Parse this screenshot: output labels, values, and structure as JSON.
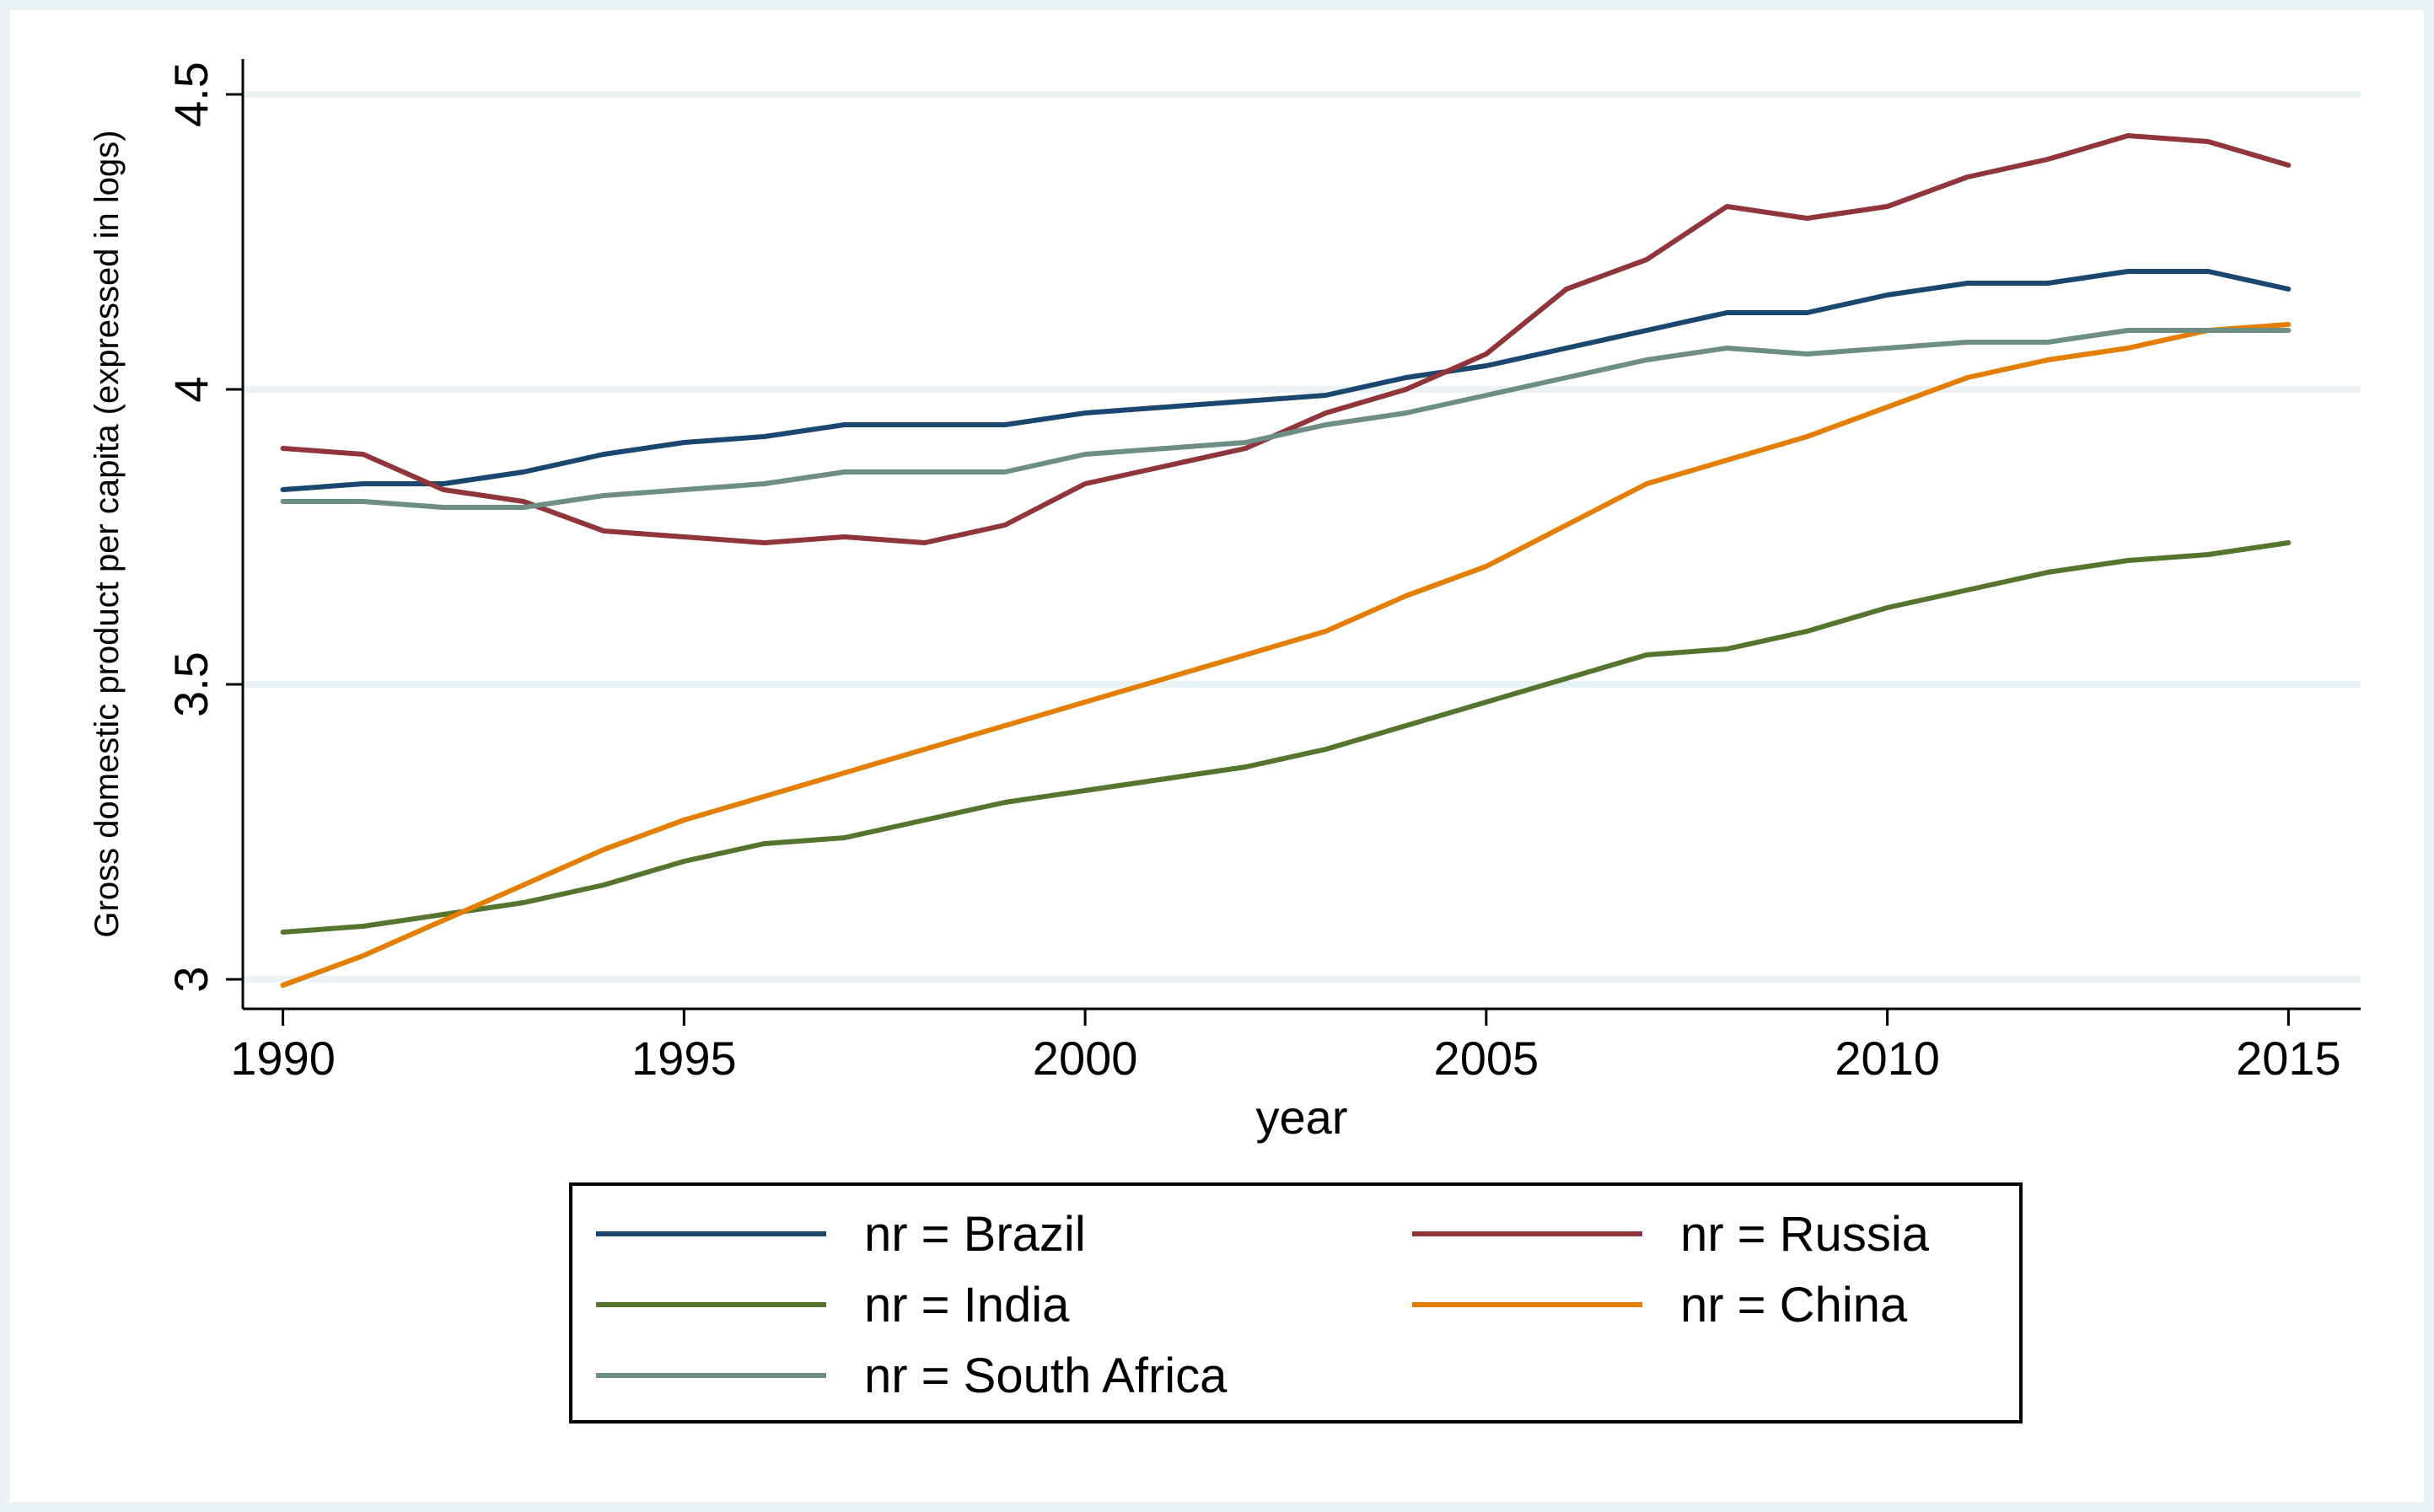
{
  "chart_data": {
    "type": "line",
    "title": "",
    "xlabel": "year",
    "ylabel": "Gross domestic product per capita (expressed in logs)",
    "xlim": [
      1989.5,
      2015.9
    ],
    "ylim": [
      2.95,
      4.56
    ],
    "x_ticks": [
      1990,
      1995,
      2000,
      2005,
      2010,
      2015
    ],
    "x_tick_labels": [
      "1990",
      "1995",
      "2000",
      "2005",
      "2010",
      "2015"
    ],
    "y_ticks": [
      3,
      3.5,
      4,
      4.5
    ],
    "y_tick_labels": [
      "3",
      "3.5",
      "4",
      "4.5"
    ],
    "grid": true,
    "legend_position": "bottom",
    "x": [
      1990,
      1991,
      1992,
      1993,
      1994,
      1995,
      1996,
      1997,
      1998,
      1999,
      2000,
      2001,
      2002,
      2003,
      2004,
      2005,
      2006,
      2007,
      2008,
      2009,
      2010,
      2011,
      2012,
      2013,
      2014,
      2015
    ],
    "series": [
      {
        "name": "nr = Brazil",
        "color": "#1a476f",
        "values": [
          3.83,
          3.84,
          3.84,
          3.86,
          3.89,
          3.91,
          3.92,
          3.94,
          3.94,
          3.94,
          3.96,
          3.97,
          3.98,
          3.99,
          4.02,
          4.04,
          4.07,
          4.1,
          4.13,
          4.13,
          4.16,
          4.18,
          4.18,
          4.2,
          4.2,
          4.17
        ]
      },
      {
        "name": "nr = Russia",
        "color": "#90353b",
        "values": [
          3.9,
          3.89,
          3.83,
          3.81,
          3.76,
          3.75,
          3.74,
          3.75,
          3.74,
          3.77,
          3.84,
          3.87,
          3.9,
          3.96,
          4.0,
          4.06,
          4.17,
          4.22,
          4.31,
          4.29,
          4.31,
          4.36,
          4.39,
          4.43,
          4.42,
          4.38
        ]
      },
      {
        "name": "nr = India",
        "color": "#55752f",
        "values": [
          3.08,
          3.09,
          3.11,
          3.13,
          3.16,
          3.2,
          3.23,
          3.24,
          3.27,
          3.3,
          3.32,
          3.34,
          3.36,
          3.39,
          3.43,
          3.47,
          3.51,
          3.55,
          3.56,
          3.59,
          3.63,
          3.66,
          3.69,
          3.71,
          3.72,
          3.74
        ]
      },
      {
        "name": "nr = China",
        "color": "#e37e00",
        "values": [
          2.99,
          3.04,
          3.1,
          3.16,
          3.22,
          3.27,
          3.31,
          3.35,
          3.39,
          3.43,
          3.47,
          3.51,
          3.55,
          3.59,
          3.65,
          3.7,
          3.77,
          3.84,
          3.88,
          3.92,
          3.97,
          4.02,
          4.05,
          4.07,
          4.1,
          4.11
        ]
      },
      {
        "name": "nr = South Africa",
        "color": "#6e8e84",
        "values": [
          3.81,
          3.81,
          3.8,
          3.8,
          3.82,
          3.83,
          3.84,
          3.86,
          3.86,
          3.86,
          3.89,
          3.9,
          3.91,
          3.94,
          3.96,
          3.99,
          4.02,
          4.05,
          4.07,
          4.06,
          4.07,
          4.08,
          4.08,
          4.1,
          4.1,
          4.1
        ]
      }
    ]
  }
}
